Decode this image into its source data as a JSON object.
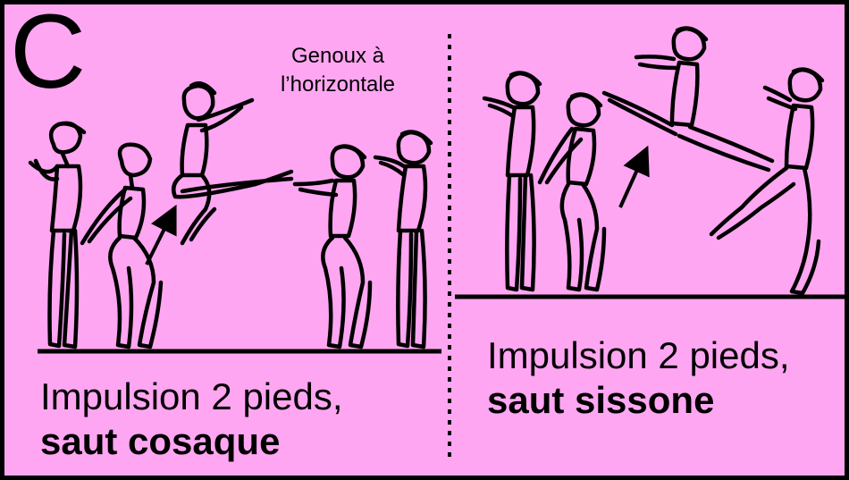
{
  "panel_letter": "C",
  "annotation": {
    "line1": "Genoux à",
    "line2": "l’horizontale"
  },
  "left_caption": {
    "line1": "Impulsion 2 pieds,",
    "line2": "saut cosaque"
  },
  "right_caption": {
    "line1": "Impulsion 2 pieds,",
    "line2": "saut sissone"
  },
  "colors": {
    "background": "#ffa6f2",
    "ink": "#000000"
  }
}
